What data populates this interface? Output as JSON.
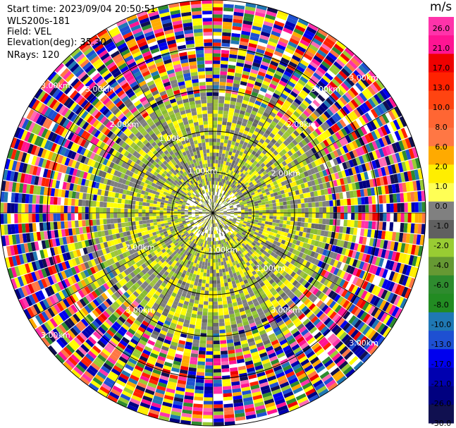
{
  "header": {
    "start_time": "Start time: 2023/09/04 20:50:51",
    "instrument": "WLS200s-181",
    "field": "Field: VEL",
    "elevation": "Elevation(deg): 35.30",
    "nrays": "NRays: 120"
  },
  "colorbar": {
    "unit": "m/s",
    "labels": [
      "26.0",
      "21.0",
      "17.0",
      "13.0",
      "10.0",
      "8.0",
      "6.0",
      "2.0",
      "1.0",
      "0.0",
      "-1.0",
      "-2.0",
      "-4.0",
      "-6.0",
      "-8.0",
      "-10.0",
      "-13.0",
      "-17.0",
      "-21.0",
      "-26.0",
      "-30.0"
    ],
    "colors": [
      "#ff33aa",
      "#ff1493",
      "#ee0000",
      "#ff2200",
      "#ff4411",
      "#ff6633",
      "#ff7744",
      "#ffaa00",
      "#ffee00",
      "#ffff55",
      "#808080",
      "#606060",
      "#99cc33",
      "#669933",
      "#2e8b2e",
      "#228b22",
      "#1f78b4",
      "#1e50d2",
      "#0000ee",
      "#0000b0",
      "#000080",
      "#101050"
    ]
  },
  "chart_data": {
    "type": "heatmap",
    "title": "",
    "field": "VEL",
    "units": "m/s",
    "nrays": 120,
    "elevation_deg": 35.3,
    "range_rings_km": [
      1.0,
      2.0,
      3.0
    ],
    "ring_labels": [
      "1.00km",
      "1.00km",
      "1.00km",
      "1.00km",
      "2.00km",
      "2.00km",
      "2.00km",
      "2.00km",
      "3.00km",
      "3.00km",
      "3.00km",
      "3.00km"
    ],
    "value_range": [
      -30.0,
      30.0
    ],
    "outer_label": "3.00km"
  }
}
